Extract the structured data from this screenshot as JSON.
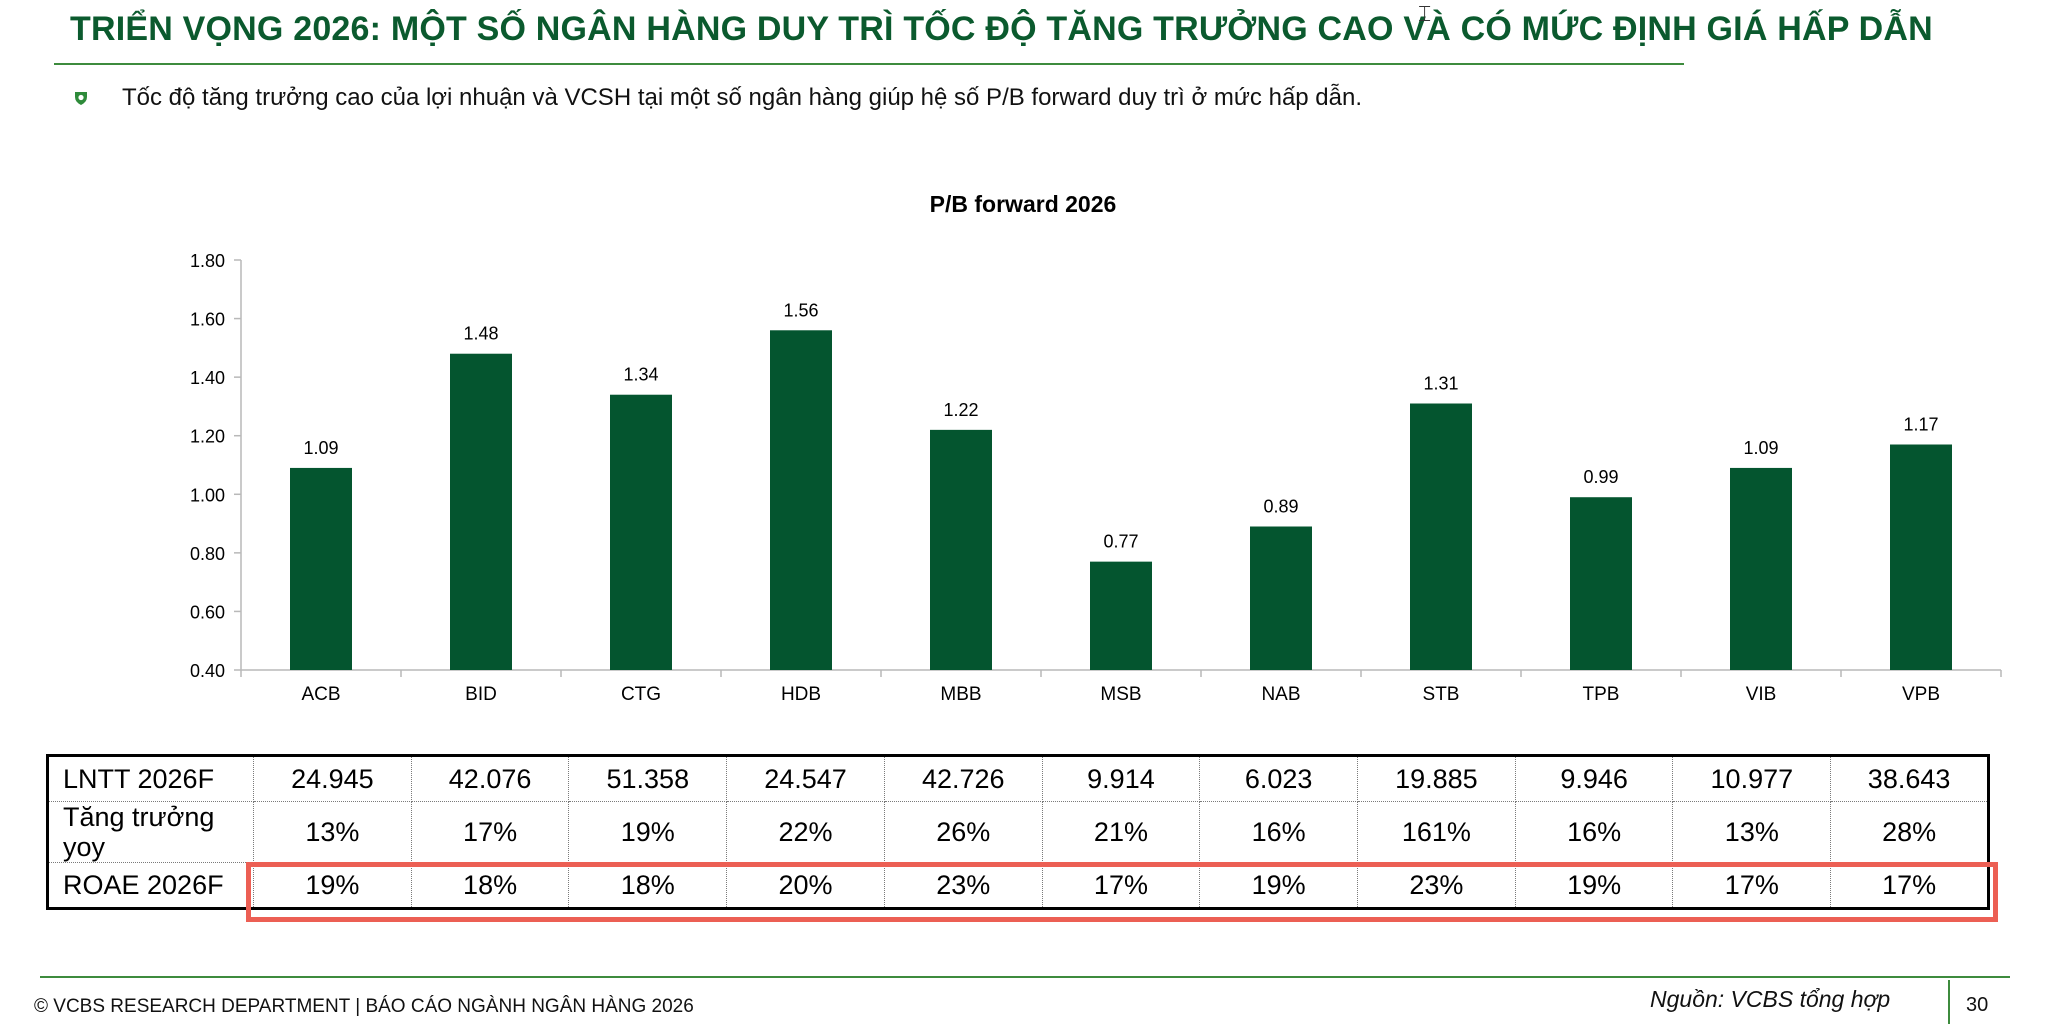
{
  "header": {
    "title": "TRIỂN VỌNG 2026: MỘT SỐ NGÂN HÀNG DUY TRÌ TỐC ĐỘ TĂNG TRƯỞNG CAO VÀ CÓ MỨC ĐỊNH GIÁ HẤP DẪN",
    "cursor_icon": "text-cursor-icon"
  },
  "bullet": {
    "icon": "shield-bullet-icon",
    "text": "Tốc độ tăng trưởng cao của lợi nhuận và VCSH tại một số ngân hàng giúp hệ số P/B forward duy trì ở mức hấp dẫn."
  },
  "chart_data": {
    "type": "bar",
    "title": "P/B forward 2026",
    "categories": [
      "ACB",
      "BID",
      "CTG",
      "HDB",
      "MBB",
      "MSB",
      "NAB",
      "STB",
      "TPB",
      "VIB",
      "VPB"
    ],
    "values": [
      1.09,
      1.48,
      1.34,
      1.56,
      1.22,
      0.77,
      0.89,
      1.31,
      0.99,
      1.09,
      1.17
    ],
    "value_labels": [
      "1.09",
      "1.48",
      "1.34",
      "1.56",
      "1.22",
      "0.77",
      "0.89",
      "1.31",
      "0.99",
      "1.09",
      "1.17"
    ],
    "ylim": [
      0.4,
      1.8
    ],
    "yticks": [
      "0.40",
      "0.60",
      "0.80",
      "1.00",
      "1.20",
      "1.40",
      "1.60",
      "1.80"
    ],
    "xlabel": "",
    "ylabel": "",
    "grid": false,
    "bar_color": "#04552f"
  },
  "table": {
    "rows": [
      {
        "label": "LNTT 2026F",
        "values": [
          "24.945",
          "42.076",
          "51.358",
          "24.547",
          "42.726",
          "9.914",
          "6.023",
          "19.885",
          "9.946",
          "10.977",
          "38.643"
        ]
      },
      {
        "label_line1": "Tăng trưởng",
        "label_line2": "yoy",
        "values": [
          "13%",
          "17%",
          "19%",
          "22%",
          "26%",
          "21%",
          "16%",
          "161%",
          "16%",
          "13%",
          "28%"
        ]
      },
      {
        "label": "ROAE 2026F",
        "values": [
          "19%",
          "18%",
          "18%",
          "20%",
          "23%",
          "17%",
          "19%",
          "23%",
          "19%",
          "17%",
          "17%"
        ]
      }
    ],
    "highlight_color": "#ec5f54"
  },
  "footer": {
    "left": "© VCBS RESEARCH DEPARTMENT | BÁO CÁO NGÀNH NGÂN HÀNG 2026",
    "source": "Nguồn: VCBS tổng hợp",
    "page": "30"
  },
  "colors": {
    "brand_green": "#0b5a2e",
    "rule_green": "#3d8b3d"
  }
}
